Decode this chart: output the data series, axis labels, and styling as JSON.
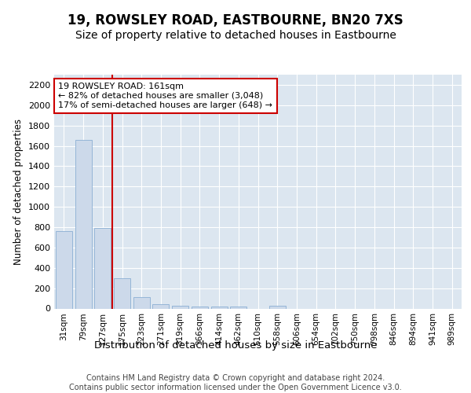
{
  "title": "19, ROWSLEY ROAD, EASTBOURNE, BN20 7XS",
  "subtitle": "Size of property relative to detached houses in Eastbourne",
  "xlabel": "Distribution of detached houses by size in Eastbourne",
  "ylabel": "Number of detached properties",
  "categories": [
    "31sqm",
    "79sqm",
    "127sqm",
    "175sqm",
    "223sqm",
    "271sqm",
    "319sqm",
    "366sqm",
    "414sqm",
    "462sqm",
    "510sqm",
    "558sqm",
    "606sqm",
    "654sqm",
    "702sqm",
    "750sqm",
    "798sqm",
    "846sqm",
    "894sqm",
    "941sqm",
    "989sqm"
  ],
  "values": [
    760,
    1660,
    790,
    300,
    110,
    40,
    30,
    20,
    20,
    20,
    0,
    30,
    0,
    0,
    0,
    0,
    0,
    0,
    0,
    0,
    0
  ],
  "bar_color": "#ccd9ea",
  "bar_edge_color": "#8bafd4",
  "vline_color": "#cc0000",
  "annotation_box_text": "19 ROWSLEY ROAD: 161sqm\n← 82% of detached houses are smaller (3,048)\n17% of semi-detached houses are larger (648) →",
  "ylim": [
    0,
    2300
  ],
  "yticks": [
    0,
    200,
    400,
    600,
    800,
    1000,
    1200,
    1400,
    1600,
    1800,
    2000,
    2200
  ],
  "footnote": "Contains HM Land Registry data © Crown copyright and database right 2024.\nContains public sector information licensed under the Open Government Licence v3.0.",
  "bg_color": "#dce6f0",
  "fig_bg_color": "#ffffff",
  "title_fontsize": 12,
  "subtitle_fontsize": 10,
  "xlabel_fontsize": 9.5,
  "ylabel_fontsize": 8.5,
  "annotation_fontsize": 8,
  "footnote_fontsize": 7,
  "tick_fontsize": 8,
  "xtick_fontsize": 7.5
}
